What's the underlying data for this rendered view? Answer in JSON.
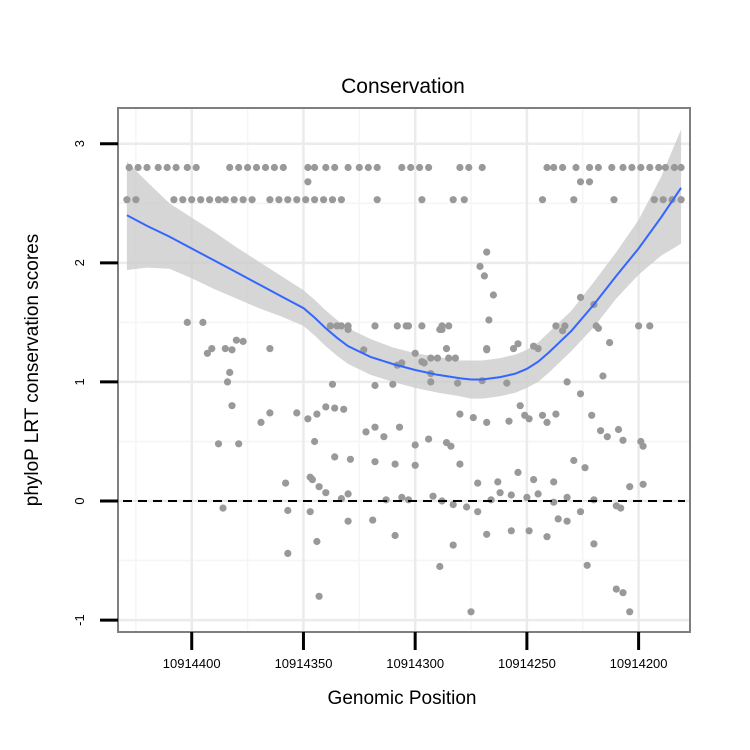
{
  "chart_data": {
    "type": "scatter",
    "title": "Conservation",
    "xlabel": "Genomic Position",
    "ylabel": "phyloP LRT conservation scores",
    "x_reversed": true,
    "xlim": [
      10914177,
      10914433
    ],
    "ylim": [
      -1.1,
      3.3
    ],
    "x_ticks": [
      10914400,
      10914350,
      10914300,
      10914250,
      10914200
    ],
    "x_tick_labels": [
      "10914400",
      "10914350",
      "10914300",
      "10914250",
      "10914200"
    ],
    "y_ticks": [
      -1,
      0,
      1,
      2,
      3
    ],
    "y_tick_labels": [
      "-1",
      "0",
      "1",
      "2",
      "3"
    ],
    "reference_line": {
      "y": 0,
      "style": "dashed",
      "color": "#000000"
    },
    "colors": {
      "points": "#999999",
      "smooth_line": "#3366FF",
      "confidence_band": "#cccccc",
      "grid_major": "#ebebeb",
      "grid_minor": "#f5f5f5",
      "panel_border": "#7f7f7f",
      "background": "#ffffff"
    },
    "series": [
      {
        "name": "phyloP score",
        "kind": "points",
        "points": [
          [
            10914428,
            2.8
          ],
          [
            10914424,
            2.8
          ],
          [
            10914420,
            2.8
          ],
          [
            10914415,
            2.8
          ],
          [
            10914411,
            2.8
          ],
          [
            10914407,
            2.8
          ],
          [
            10914402,
            2.8
          ],
          [
            10914398,
            2.8
          ],
          [
            10914383,
            2.8
          ],
          [
            10914379,
            2.8
          ],
          [
            10914375,
            2.8
          ],
          [
            10914371,
            2.8
          ],
          [
            10914367,
            2.8
          ],
          [
            10914363,
            2.8
          ],
          [
            10914359,
            2.8
          ],
          [
            10914348,
            2.8
          ],
          [
            10914345,
            2.8
          ],
          [
            10914340,
            2.8
          ],
          [
            10914336,
            2.8
          ],
          [
            10914330,
            2.8
          ],
          [
            10914325,
            2.8
          ],
          [
            10914321,
            2.8
          ],
          [
            10914317,
            2.8
          ],
          [
            10914306,
            2.8
          ],
          [
            10914302,
            2.8
          ],
          [
            10914298,
            2.8
          ],
          [
            10914294,
            2.8
          ],
          [
            10914280,
            2.8
          ],
          [
            10914276,
            2.8
          ],
          [
            10914270,
            2.8
          ],
          [
            10914241,
            2.8
          ],
          [
            10914238,
            2.8
          ],
          [
            10914234,
            2.8
          ],
          [
            10914228,
            2.8
          ],
          [
            10914222,
            2.8
          ],
          [
            10914218,
            2.8
          ],
          [
            10914212,
            2.8
          ],
          [
            10914207,
            2.8
          ],
          [
            10914203,
            2.8
          ],
          [
            10914199,
            2.8
          ],
          [
            10914195,
            2.8
          ],
          [
            10914191,
            2.8
          ],
          [
            10914188,
            2.8
          ],
          [
            10914184,
            2.8
          ],
          [
            10914181,
            2.8
          ],
          [
            10914429,
            2.53
          ],
          [
            10914425,
            2.53
          ],
          [
            10914408,
            2.53
          ],
          [
            10914404,
            2.53
          ],
          [
            10914400,
            2.53
          ],
          [
            10914396,
            2.53
          ],
          [
            10914392,
            2.53
          ],
          [
            10914388,
            2.53
          ],
          [
            10914385,
            2.53
          ],
          [
            10914381,
            2.53
          ],
          [
            10914377,
            2.53
          ],
          [
            10914373,
            2.53
          ],
          [
            10914365,
            2.53
          ],
          [
            10914361,
            2.53
          ],
          [
            10914357,
            2.53
          ],
          [
            10914353,
            2.53
          ],
          [
            10914349,
            2.53
          ],
          [
            10914345,
            2.53
          ],
          [
            10914341,
            2.53
          ],
          [
            10914337,
            2.53
          ],
          [
            10914333,
            2.53
          ],
          [
            10914317,
            2.53
          ],
          [
            10914297,
            2.53
          ],
          [
            10914283,
            2.53
          ],
          [
            10914278,
            2.53
          ],
          [
            10914243,
            2.53
          ],
          [
            10914229,
            2.53
          ],
          [
            10914211,
            2.53
          ],
          [
            10914193,
            2.53
          ],
          [
            10914189,
            2.53
          ],
          [
            10914185,
            2.53
          ],
          [
            10914181,
            2.53
          ],
          [
            10914348,
            2.68
          ],
          [
            10914226,
            2.68
          ],
          [
            10914222,
            2.68
          ],
          [
            10914268,
            2.09
          ],
          [
            10914271,
            1.97
          ],
          [
            10914269,
            1.89
          ],
          [
            10914265,
            1.73
          ],
          [
            10914226,
            1.71
          ],
          [
            10914220,
            1.65
          ],
          [
            10914402,
            1.5
          ],
          [
            10914395,
            1.5
          ],
          [
            10914338,
            1.47
          ],
          [
            10914335,
            1.47
          ],
          [
            10914333,
            1.47
          ],
          [
            10914308,
            1.47
          ],
          [
            10914304,
            1.47
          ],
          [
            10914297,
            1.47
          ],
          [
            10914303,
            1.47
          ],
          [
            10914288,
            1.47
          ],
          [
            10914285,
            1.47
          ],
          [
            10914267,
            1.52
          ],
          [
            10914237,
            1.47
          ],
          [
            10914233,
            1.47
          ],
          [
            10914219,
            1.47
          ],
          [
            10914195,
            1.47
          ],
          [
            10914200,
            1.47
          ],
          [
            10914218,
            1.45
          ],
          [
            10914234,
            1.43
          ],
          [
            10914254,
            1.32
          ],
          [
            10914247,
            1.3
          ],
          [
            10914256,
            1.28
          ],
          [
            10914330,
            1.44
          ],
          [
            10914289,
            1.44
          ],
          [
            10914288,
            1.44
          ],
          [
            10914318,
            1.47
          ],
          [
            10914286,
            1.28
          ],
          [
            10914268,
            1.28
          ],
          [
            10914245,
            1.28
          ],
          [
            10914380,
            1.35
          ],
          [
            10914377,
            1.34
          ],
          [
            10914391,
            1.28
          ],
          [
            10914385,
            1.28
          ],
          [
            10914365,
            1.28
          ],
          [
            10914323,
            1.27
          ],
          [
            10914300,
            1.24
          ],
          [
            10914285,
            1.2
          ],
          [
            10914297,
            1.17
          ],
          [
            10914296,
            1.16
          ],
          [
            10914282,
            1.2
          ],
          [
            10914290,
            1.2
          ],
          [
            10914293,
            1.2
          ],
          [
            10914213,
            1.33
          ],
          [
            10914382,
            1.27
          ],
          [
            10914330,
            1.47
          ],
          [
            10914393,
            1.24
          ],
          [
            10914268,
            1.27
          ],
          [
            10914383,
            1.08
          ],
          [
            10914384,
            1.0
          ],
          [
            10914308,
            1.14
          ],
          [
            10914306,
            1.16
          ],
          [
            10914293,
            1.07
          ],
          [
            10914293,
            1.0
          ],
          [
            10914259,
            0.99
          ],
          [
            10914337,
            0.98
          ],
          [
            10914318,
            0.97
          ],
          [
            10914310,
            0.98
          ],
          [
            10914281,
            0.99
          ],
          [
            10914270,
            1.01
          ],
          [
            10914226,
            0.9
          ],
          [
            10914232,
            1.0
          ],
          [
            10914216,
            1.05
          ],
          [
            10914382,
            0.8
          ],
          [
            10914369,
            0.66
          ],
          [
            10914365,
            0.74
          ],
          [
            10914353,
            0.74
          ],
          [
            10914348,
            0.69
          ],
          [
            10914344,
            0.73
          ],
          [
            10914340,
            0.79
          ],
          [
            10914336,
            0.78
          ],
          [
            10914332,
            0.77
          ],
          [
            10914318,
            0.62
          ],
          [
            10914314,
            0.54
          ],
          [
            10914322,
            0.58
          ],
          [
            10914307,
            0.62
          ],
          [
            10914294,
            0.52
          ],
          [
            10914286,
            0.49
          ],
          [
            10914284,
            0.46
          ],
          [
            10914300,
            0.47
          ],
          [
            10914280,
            0.73
          ],
          [
            10914274,
            0.7
          ],
          [
            10914268,
            0.66
          ],
          [
            10914253,
            0.8
          ],
          [
            10914251,
            0.72
          ],
          [
            10914249,
            0.69
          ],
          [
            10914241,
            0.66
          ],
          [
            10914237,
            0.73
          ],
          [
            10914221,
            0.72
          ],
          [
            10914214,
            0.54
          ],
          [
            10914207,
            0.51
          ],
          [
            10914199,
            0.5
          ],
          [
            10914198,
            0.46
          ],
          [
            10914258,
            0.67
          ],
          [
            10914243,
            0.72
          ],
          [
            10914217,
            0.59
          ],
          [
            10914209,
            0.6
          ],
          [
            10914388,
            0.48
          ],
          [
            10914379,
            0.48
          ],
          [
            10914345,
            0.5
          ],
          [
            10914336,
            0.37
          ],
          [
            10914329,
            0.35
          ],
          [
            10914318,
            0.33
          ],
          [
            10914309,
            0.31
          ],
          [
            10914300,
            0.3
          ],
          [
            10914280,
            0.31
          ],
          [
            10914272,
            0.15
          ],
          [
            10914263,
            0.16
          ],
          [
            10914254,
            0.24
          ],
          [
            10914247,
            0.18
          ],
          [
            10914238,
            0.16
          ],
          [
            10914229,
            0.34
          ],
          [
            10914224,
            0.28
          ],
          [
            10914347,
            0.2
          ],
          [
            10914346,
            0.18
          ],
          [
            10914358,
            0.15
          ],
          [
            10914343,
            0.12
          ],
          [
            10914340,
            0.07
          ],
          [
            10914333,
            0.02
          ],
          [
            10914313,
            0.01
          ],
          [
            10914306,
            0.03
          ],
          [
            10914303,
            0.01
          ],
          [
            10914292,
            0.04
          ],
          [
            10914288,
            0.0
          ],
          [
            10914283,
            -0.03
          ],
          [
            10914277,
            -0.05
          ],
          [
            10914272,
            -0.09
          ],
          [
            10914266,
            0.01
          ],
          [
            10914262,
            0.07
          ],
          [
            10914257,
            0.05
          ],
          [
            10914250,
            0.03
          ],
          [
            10914245,
            0.06
          ],
          [
            10914238,
            -0.01
          ],
          [
            10914232,
            0.03
          ],
          [
            10914226,
            -0.09
          ],
          [
            10914220,
            0.01
          ],
          [
            10914210,
            -0.04
          ],
          [
            10914208,
            -0.06
          ],
          [
            10914204,
            0.12
          ],
          [
            10914198,
            0.14
          ],
          [
            10914357,
            -0.08
          ],
          [
            10914386,
            -0.06
          ],
          [
            10914347,
            -0.09
          ],
          [
            10914357,
            -0.44
          ],
          [
            10914330,
            -0.17
          ],
          [
            10914344,
            -0.34
          ],
          [
            10914343,
            -0.8
          ],
          [
            10914309,
            -0.29
          ],
          [
            10914319,
            -0.16
          ],
          [
            10914289,
            -0.55
          ],
          [
            10914283,
            -0.37
          ],
          [
            10914268,
            -0.28
          ],
          [
            10914257,
            -0.25
          ],
          [
            10914249,
            -0.25
          ],
          [
            10914241,
            -0.3
          ],
          [
            10914236,
            -0.15
          ],
          [
            10914232,
            -0.17
          ],
          [
            10914223,
            -0.54
          ],
          [
            10914220,
            -0.36
          ],
          [
            10914207,
            -0.77
          ],
          [
            10914204,
            -0.93
          ],
          [
            10914275,
            -0.93
          ],
          [
            10914210,
            -0.74
          ],
          [
            10914330,
            0.06
          ]
        ]
      },
      {
        "name": "LOESS fit",
        "kind": "line",
        "x": [
          10914429,
          10914420,
          10914410,
          10914400,
          10914390,
          10914380,
          10914370,
          10914360,
          10914350,
          10914345,
          10914340,
          10914335,
          10914330,
          10914320,
          10914310,
          10914300,
          10914290,
          10914280,
          10914275,
          10914270,
          10914262,
          10914255,
          10914250,
          10914245,
          10914240,
          10914230,
          10914220,
          10914210,
          10914200,
          10914190,
          10914181
        ],
        "y": [
          2.4,
          2.31,
          2.22,
          2.12,
          2.02,
          1.92,
          1.82,
          1.72,
          1.62,
          1.54,
          1.45,
          1.37,
          1.3,
          1.21,
          1.15,
          1.1,
          1.06,
          1.03,
          1.02,
          1.02,
          1.04,
          1.07,
          1.11,
          1.17,
          1.25,
          1.43,
          1.65,
          1.89,
          2.12,
          2.38,
          2.63
        ],
        "ci_upper": [
          2.85,
          2.68,
          2.5,
          2.38,
          2.26,
          2.13,
          2.01,
          1.89,
          1.77,
          1.69,
          1.6,
          1.52,
          1.45,
          1.36,
          1.29,
          1.24,
          1.21,
          1.18,
          1.18,
          1.18,
          1.2,
          1.23,
          1.27,
          1.33,
          1.42,
          1.6,
          1.84,
          2.09,
          2.36,
          2.72,
          3.12
        ],
        "ci_lower": [
          1.94,
          1.96,
          1.95,
          1.87,
          1.78,
          1.7,
          1.62,
          1.55,
          1.47,
          1.39,
          1.3,
          1.22,
          1.15,
          1.06,
          1.0,
          0.95,
          0.91,
          0.88,
          0.86,
          0.86,
          0.88,
          0.91,
          0.95,
          1.0,
          1.08,
          1.26,
          1.46,
          1.7,
          1.9,
          2.06,
          2.16
        ]
      }
    ]
  }
}
